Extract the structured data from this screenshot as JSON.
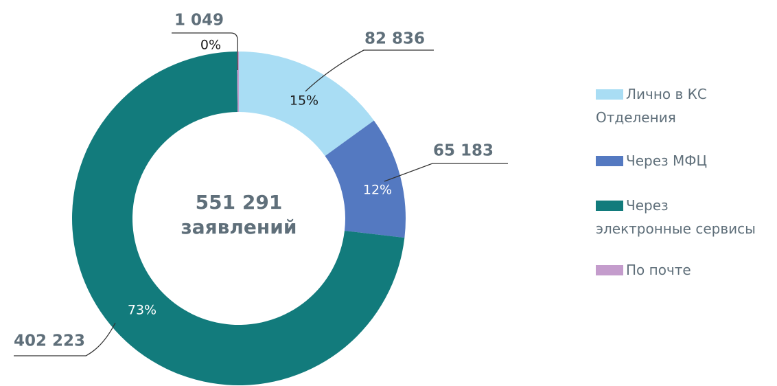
{
  "chart_data": {
    "type": "donut",
    "categories": [
      "Лично в КС Отделения",
      "Через МФЦ",
      "Через электронные сервисы",
      "По почте"
    ],
    "values": [
      82836,
      65183,
      402223,
      1049
    ],
    "value_labels": [
      "82 836",
      "65 183",
      "402 223",
      "1 049"
    ],
    "percents": [
      15,
      12,
      73,
      0
    ],
    "percent_labels": [
      "15%",
      "12%",
      "73%",
      "0%"
    ],
    "colors": [
      "#a9ddf4",
      "#5479c1",
      "#127b7c",
      "#c49ccc"
    ],
    "total": 551291,
    "total_label": "551 291",
    "total_caption": "заявлений",
    "legend": "right"
  }
}
